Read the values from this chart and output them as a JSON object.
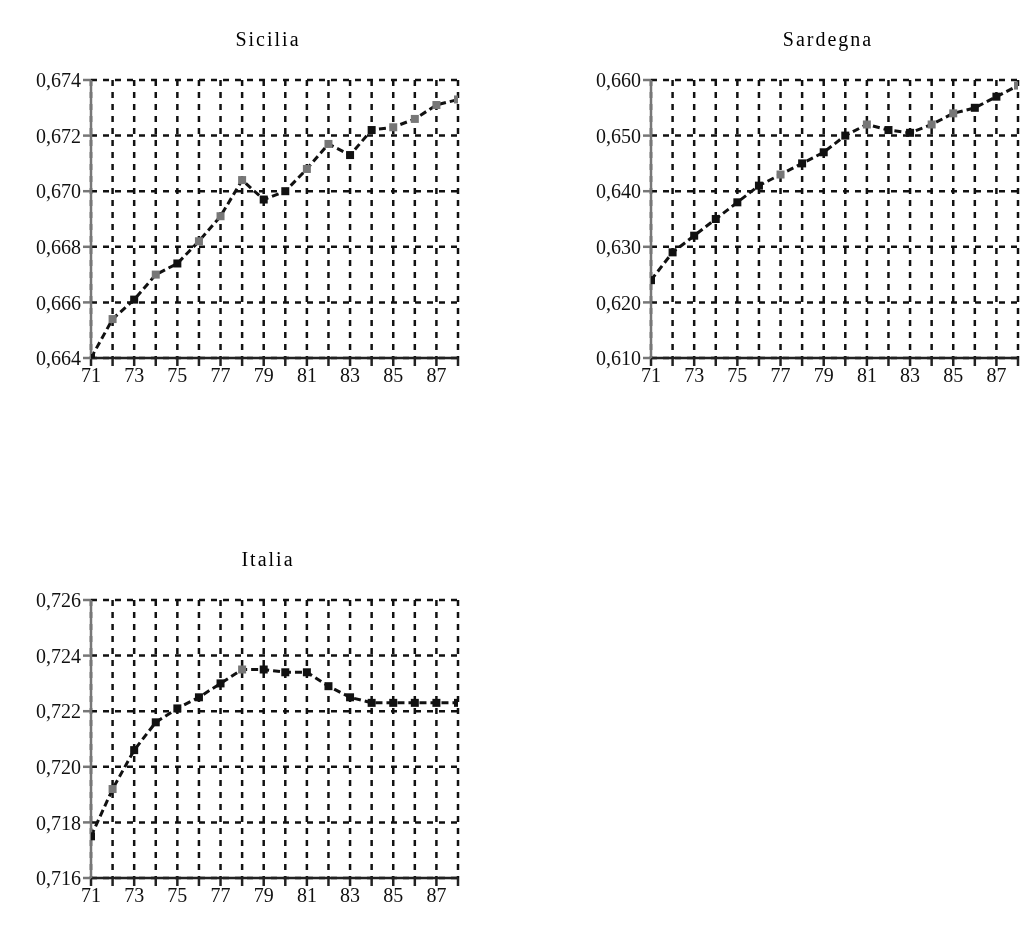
{
  "chart_data": [
    {
      "type": "line",
      "title": "Sicilia",
      "x": [
        71,
        72,
        73,
        74,
        75,
        76,
        77,
        78,
        79,
        80,
        81,
        82,
        83,
        84,
        85,
        86,
        87,
        88
      ],
      "series": [
        {
          "color": "#111111",
          "colors": [
            "#111111",
            "#777777",
            "#111111",
            "#777777",
            "#111111",
            "#777777",
            "#777777",
            "#777777",
            "#111111",
            "#111111",
            "#777777",
            "#777777",
            "#111111",
            "#111111",
            "#777777",
            "#777777",
            "#777777",
            "#777777"
          ],
          "values": [
            0.664,
            0.6654,
            0.6661,
            0.667,
            0.6674,
            0.6682,
            0.6691,
            0.6704,
            0.6697,
            0.67,
            0.6708,
            0.6717,
            0.6713,
            0.6722,
            0.6723,
            0.6726,
            0.6731,
            0.6733
          ]
        }
      ],
      "xlim": [
        71,
        88
      ],
      "xticks": [
        71,
        {
          "value": 72,
          "label": null
        },
        73,
        {
          "value": 74,
          "label": null
        },
        75,
        {
          "value": 76,
          "label": null
        },
        77,
        {
          "value": 78,
          "label": null
        },
        79,
        {
          "value": 80,
          "label": null
        },
        81,
        {
          "value": 82,
          "label": null
        },
        83,
        {
          "value": 84,
          "label": null
        },
        85,
        {
          "value": 86,
          "label": null
        },
        87,
        {
          "value": 88,
          "label": null
        }
      ],
      "ylim": [
        0.664,
        0.674
      ],
      "yticks": [
        {
          "value": 0.664,
          "label": "0,664"
        },
        {
          "value": 0.666,
          "label": "0,666"
        },
        {
          "value": 0.668,
          "label": "0,668"
        },
        {
          "value": 0.67,
          "label": "0,670"
        },
        {
          "value": 0.672,
          "label": "0,672"
        },
        {
          "value": 0.674,
          "label": "0,674"
        }
      ],
      "grid": true,
      "marker": "square",
      "line_style": "dashed",
      "legend": false
    },
    {
      "type": "line",
      "title": "Sardegna",
      "x": [
        71,
        72,
        73,
        74,
        75,
        76,
        77,
        78,
        79,
        80,
        81,
        82,
        83,
        84,
        85,
        86,
        87,
        88
      ],
      "series": [
        {
          "color": "#111111",
          "colors": [
            "#111111",
            "#111111",
            "#111111",
            "#111111",
            "#111111",
            "#111111",
            "#777777",
            "#111111",
            "#111111",
            "#111111",
            "#777777",
            "#111111",
            "#111111",
            "#777777",
            "#777777",
            "#111111",
            "#111111",
            "#777777"
          ],
          "values": [
            0.624,
            0.629,
            0.632,
            0.635,
            0.638,
            0.641,
            0.643,
            0.645,
            0.647,
            0.65,
            0.652,
            0.651,
            0.6505,
            0.652,
            0.654,
            0.655,
            0.657,
            0.659
          ]
        }
      ],
      "xlim": [
        71,
        88
      ],
      "xticks": [
        71,
        {
          "value": 72,
          "label": null
        },
        73,
        {
          "value": 74,
          "label": null
        },
        75,
        {
          "value": 76,
          "label": null
        },
        77,
        {
          "value": 78,
          "label": null
        },
        79,
        {
          "value": 80,
          "label": null
        },
        81,
        {
          "value": 82,
          "label": null
        },
        83,
        {
          "value": 84,
          "label": null
        },
        85,
        {
          "value": 86,
          "label": null
        },
        87,
        {
          "value": 88,
          "label": null
        }
      ],
      "ylim": [
        0.61,
        0.66
      ],
      "yticks": [
        {
          "value": 0.61,
          "label": "0,610"
        },
        {
          "value": 0.62,
          "label": "0,620"
        },
        {
          "value": 0.63,
          "label": "0,630"
        },
        {
          "value": 0.64,
          "label": "0,640"
        },
        {
          "value": 0.65,
          "label": "0,650"
        },
        {
          "value": 0.66,
          "label": "0,660"
        }
      ],
      "grid": true,
      "marker": "square",
      "line_style": "dashed",
      "legend": false
    },
    {
      "type": "line",
      "title": "Italia",
      "x": [
        71,
        72,
        73,
        74,
        75,
        76,
        77,
        78,
        79,
        80,
        81,
        82,
        83,
        84,
        85,
        86,
        87,
        88
      ],
      "series": [
        {
          "color": "#111111",
          "colors": [
            "#111111",
            "#777777",
            "#111111",
            "#111111",
            "#111111",
            "#111111",
            "#111111",
            "#777777",
            "#111111",
            "#111111",
            "#111111",
            "#111111",
            "#111111",
            "#111111",
            "#111111",
            "#111111",
            "#111111",
            "#111111"
          ],
          "values": [
            0.7175,
            0.7192,
            0.7206,
            0.7216,
            0.7221,
            0.7225,
            0.723,
            0.7235,
            0.7235,
            0.7234,
            0.7234,
            0.7229,
            0.7225,
            0.7223,
            0.7223,
            0.7223,
            0.7223,
            0.7223
          ]
        }
      ],
      "xlim": [
        71,
        88
      ],
      "xticks": [
        71,
        {
          "value": 72,
          "label": null
        },
        73,
        {
          "value": 74,
          "label": null
        },
        75,
        {
          "value": 76,
          "label": null
        },
        77,
        {
          "value": 78,
          "label": null
        },
        79,
        {
          "value": 80,
          "label": null
        },
        81,
        {
          "value": 82,
          "label": null
        },
        83,
        {
          "value": 84,
          "label": null
        },
        85,
        {
          "value": 86,
          "label": null
        },
        87,
        {
          "value": 88,
          "label": null
        }
      ],
      "ylim": [
        0.716,
        0.726
      ],
      "yticks": [
        {
          "value": 0.716,
          "label": "0,716"
        },
        {
          "value": 0.718,
          "label": "0,718"
        },
        {
          "value": 0.72,
          "label": "0,720"
        },
        {
          "value": 0.722,
          "label": "0,722"
        },
        {
          "value": 0.724,
          "label": "0,724"
        },
        {
          "value": 0.726,
          "label": "0,726"
        }
      ],
      "grid": true,
      "marker": "square",
      "line_style": "dashed",
      "legend": false
    }
  ]
}
